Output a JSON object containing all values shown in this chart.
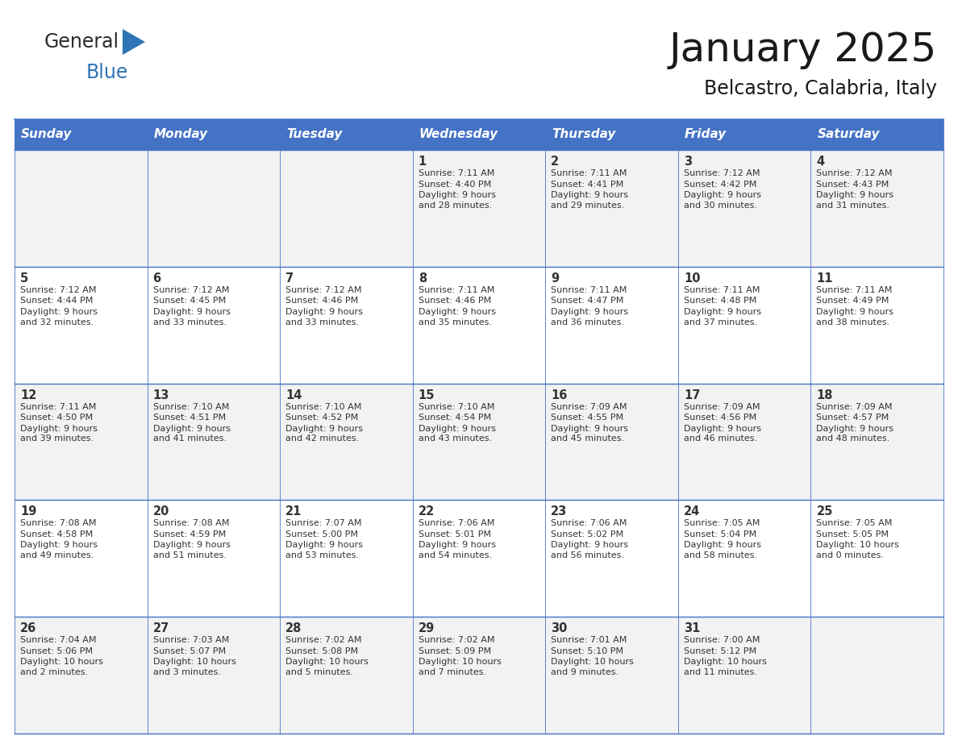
{
  "title": "January 2025",
  "subtitle": "Belcastro, Calabria, Italy",
  "header_bg": "#4472C4",
  "header_text_color": "#FFFFFF",
  "cell_bg_even": "#F2F2F2",
  "cell_bg_odd": "#FFFFFF",
  "cell_border_color": "#4472C4",
  "text_color": "#333333",
  "day_names": [
    "Sunday",
    "Monday",
    "Tuesday",
    "Wednesday",
    "Thursday",
    "Friday",
    "Saturday"
  ],
  "logo_general_color": "#2B2B2B",
  "logo_blue_color": "#2E75B6",
  "weeks": [
    [
      {
        "day": "",
        "sunrise": "",
        "sunset": "",
        "daylight": ""
      },
      {
        "day": "",
        "sunrise": "",
        "sunset": "",
        "daylight": ""
      },
      {
        "day": "",
        "sunrise": "",
        "sunset": "",
        "daylight": ""
      },
      {
        "day": "1",
        "sunrise": "7:11 AM",
        "sunset": "4:40 PM",
        "daylight": "9 hours\nand 28 minutes."
      },
      {
        "day": "2",
        "sunrise": "7:11 AM",
        "sunset": "4:41 PM",
        "daylight": "9 hours\nand 29 minutes."
      },
      {
        "day": "3",
        "sunrise": "7:12 AM",
        "sunset": "4:42 PM",
        "daylight": "9 hours\nand 30 minutes."
      },
      {
        "day": "4",
        "sunrise": "7:12 AM",
        "sunset": "4:43 PM",
        "daylight": "9 hours\nand 31 minutes."
      }
    ],
    [
      {
        "day": "5",
        "sunrise": "7:12 AM",
        "sunset": "4:44 PM",
        "daylight": "9 hours\nand 32 minutes."
      },
      {
        "day": "6",
        "sunrise": "7:12 AM",
        "sunset": "4:45 PM",
        "daylight": "9 hours\nand 33 minutes."
      },
      {
        "day": "7",
        "sunrise": "7:12 AM",
        "sunset": "4:46 PM",
        "daylight": "9 hours\nand 33 minutes."
      },
      {
        "day": "8",
        "sunrise": "7:11 AM",
        "sunset": "4:46 PM",
        "daylight": "9 hours\nand 35 minutes."
      },
      {
        "day": "9",
        "sunrise": "7:11 AM",
        "sunset": "4:47 PM",
        "daylight": "9 hours\nand 36 minutes."
      },
      {
        "day": "10",
        "sunrise": "7:11 AM",
        "sunset": "4:48 PM",
        "daylight": "9 hours\nand 37 minutes."
      },
      {
        "day": "11",
        "sunrise": "7:11 AM",
        "sunset": "4:49 PM",
        "daylight": "9 hours\nand 38 minutes."
      }
    ],
    [
      {
        "day": "12",
        "sunrise": "7:11 AM",
        "sunset": "4:50 PM",
        "daylight": "9 hours\nand 39 minutes."
      },
      {
        "day": "13",
        "sunrise": "7:10 AM",
        "sunset": "4:51 PM",
        "daylight": "9 hours\nand 41 minutes."
      },
      {
        "day": "14",
        "sunrise": "7:10 AM",
        "sunset": "4:52 PM",
        "daylight": "9 hours\nand 42 minutes."
      },
      {
        "day": "15",
        "sunrise": "7:10 AM",
        "sunset": "4:54 PM",
        "daylight": "9 hours\nand 43 minutes."
      },
      {
        "day": "16",
        "sunrise": "7:09 AM",
        "sunset": "4:55 PM",
        "daylight": "9 hours\nand 45 minutes."
      },
      {
        "day": "17",
        "sunrise": "7:09 AM",
        "sunset": "4:56 PM",
        "daylight": "9 hours\nand 46 minutes."
      },
      {
        "day": "18",
        "sunrise": "7:09 AM",
        "sunset": "4:57 PM",
        "daylight": "9 hours\nand 48 minutes."
      }
    ],
    [
      {
        "day": "19",
        "sunrise": "7:08 AM",
        "sunset": "4:58 PM",
        "daylight": "9 hours\nand 49 minutes."
      },
      {
        "day": "20",
        "sunrise": "7:08 AM",
        "sunset": "4:59 PM",
        "daylight": "9 hours\nand 51 minutes."
      },
      {
        "day": "21",
        "sunrise": "7:07 AM",
        "sunset": "5:00 PM",
        "daylight": "9 hours\nand 53 minutes."
      },
      {
        "day": "22",
        "sunrise": "7:06 AM",
        "sunset": "5:01 PM",
        "daylight": "9 hours\nand 54 minutes."
      },
      {
        "day": "23",
        "sunrise": "7:06 AM",
        "sunset": "5:02 PM",
        "daylight": "9 hours\nand 56 minutes."
      },
      {
        "day": "24",
        "sunrise": "7:05 AM",
        "sunset": "5:04 PM",
        "daylight": "9 hours\nand 58 minutes."
      },
      {
        "day": "25",
        "sunrise": "7:05 AM",
        "sunset": "5:05 PM",
        "daylight": "10 hours\nand 0 minutes."
      }
    ],
    [
      {
        "day": "26",
        "sunrise": "7:04 AM",
        "sunset": "5:06 PM",
        "daylight": "10 hours\nand 2 minutes."
      },
      {
        "day": "27",
        "sunrise": "7:03 AM",
        "sunset": "5:07 PM",
        "daylight": "10 hours\nand 3 minutes."
      },
      {
        "day": "28",
        "sunrise": "7:02 AM",
        "sunset": "5:08 PM",
        "daylight": "10 hours\nand 5 minutes."
      },
      {
        "day": "29",
        "sunrise": "7:02 AM",
        "sunset": "5:09 PM",
        "daylight": "10 hours\nand 7 minutes."
      },
      {
        "day": "30",
        "sunrise": "7:01 AM",
        "sunset": "5:10 PM",
        "daylight": "10 hours\nand 9 minutes."
      },
      {
        "day": "31",
        "sunrise": "7:00 AM",
        "sunset": "5:12 PM",
        "daylight": "10 hours\nand 11 minutes."
      },
      {
        "day": "",
        "sunrise": "",
        "sunset": "",
        "daylight": ""
      }
    ]
  ]
}
